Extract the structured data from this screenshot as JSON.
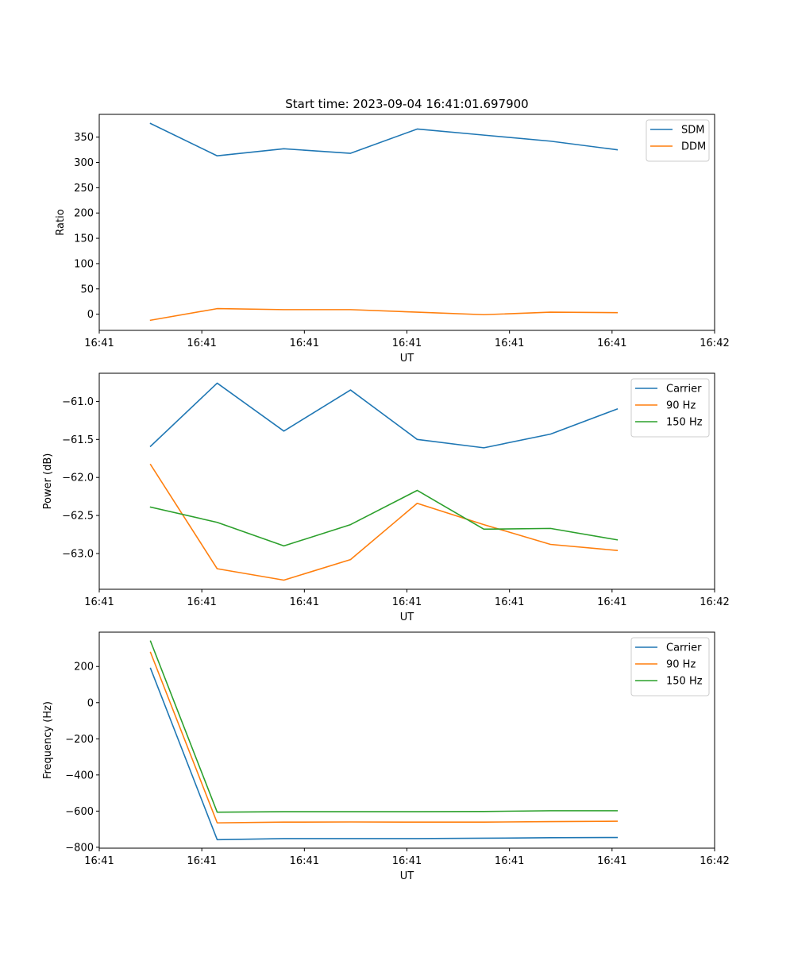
{
  "chart_data": [
    {
      "type": "line",
      "title": "Start time: 2023-09-04 16:41:01.697900",
      "xlabel": "UT",
      "ylabel": "Ratio",
      "x": [
        0.5,
        1.15,
        1.8,
        2.45,
        3.1,
        3.75,
        4.4,
        5.05
      ],
      "xlim": [
        0,
        6
      ],
      "xticks": [
        0,
        1,
        2,
        3,
        4,
        5,
        6
      ],
      "xtick_labels": [
        "16:41",
        "16:41",
        "16:41",
        "16:41",
        "16:41",
        "16:41",
        "16:42"
      ],
      "ylim": [
        -32,
        395
      ],
      "yticks": [
        0,
        50,
        100,
        150,
        200,
        250,
        300,
        350
      ],
      "ytick_labels": [
        "0",
        "50",
        "100",
        "150",
        "200",
        "250",
        "300",
        "350"
      ],
      "legend": "top-right",
      "series": [
        {
          "name": "SDM",
          "color": "#1f77b4",
          "values": [
            377,
            313,
            327,
            318,
            366,
            354,
            342,
            325
          ]
        },
        {
          "name": "DDM",
          "color": "#ff7f0e",
          "values": [
            -12,
            11,
            9,
            9,
            4,
            -1,
            4,
            3
          ]
        }
      ]
    },
    {
      "type": "line",
      "title": "",
      "xlabel": "UT",
      "ylabel": "Power (dB)",
      "x": [
        0.5,
        1.15,
        1.8,
        2.45,
        3.1,
        3.75,
        4.4,
        5.05
      ],
      "xlim": [
        0,
        6
      ],
      "xticks": [
        0,
        1,
        2,
        3,
        4,
        5,
        6
      ],
      "xtick_labels": [
        "16:41",
        "16:41",
        "16:41",
        "16:41",
        "16:41",
        "16:41",
        "16:42"
      ],
      "ylim": [
        -63.47,
        -60.63
      ],
      "yticks": [
        -63.0,
        -62.5,
        -62.0,
        -61.5,
        -61.0
      ],
      "ytick_labels": [
        "−63.0",
        "−62.5",
        "−62.0",
        "−61.5",
        "−61.0"
      ],
      "legend": "top-right",
      "series": [
        {
          "name": "Carrier",
          "color": "#1f77b4",
          "values": [
            -61.59,
            -60.76,
            -61.39,
            -60.85,
            -61.5,
            -61.61,
            -61.43,
            -61.1
          ]
        },
        {
          "name": "90 Hz",
          "color": "#ff7f0e",
          "values": [
            -61.83,
            -63.2,
            -63.35,
            -63.08,
            -62.34,
            -62.62,
            -62.88,
            -62.96
          ]
        },
        {
          "name": "150 Hz",
          "color": "#2ca02c",
          "values": [
            -62.39,
            -62.59,
            -62.9,
            -62.62,
            -62.17,
            -62.68,
            -62.67,
            -62.82
          ]
        }
      ]
    },
    {
      "type": "line",
      "title": "",
      "xlabel": "UT",
      "ylabel": "Frequency (Hz)",
      "x": [
        0.5,
        1.15,
        1.8,
        2.45,
        3.1,
        3.75,
        4.4,
        5.05
      ],
      "xlim": [
        0,
        6
      ],
      "xticks": [
        0,
        1,
        2,
        3,
        4,
        5,
        6
      ],
      "xtick_labels": [
        "16:41",
        "16:41",
        "16:41",
        "16:41",
        "16:41",
        "16:41",
        "16:42"
      ],
      "ylim": [
        -805,
        390
      ],
      "yticks": [
        -800,
        -600,
        -400,
        -200,
        0,
        200
      ],
      "ytick_labels": [
        "−800",
        "−600",
        "−400",
        "−200",
        "0",
        "200"
      ],
      "legend": "top-right",
      "series": [
        {
          "name": "Carrier",
          "color": "#1f77b4",
          "values": [
            190,
            -758,
            -752,
            -752,
            -752,
            -750,
            -747,
            -746
          ]
        },
        {
          "name": "90 Hz",
          "color": "#ff7f0e",
          "values": [
            278,
            -665,
            -661,
            -660,
            -661,
            -661,
            -658,
            -656
          ]
        },
        {
          "name": "150 Hz",
          "color": "#2ca02c",
          "values": [
            340,
            -606,
            -603,
            -603,
            -603,
            -602,
            -598,
            -598
          ]
        }
      ]
    }
  ]
}
